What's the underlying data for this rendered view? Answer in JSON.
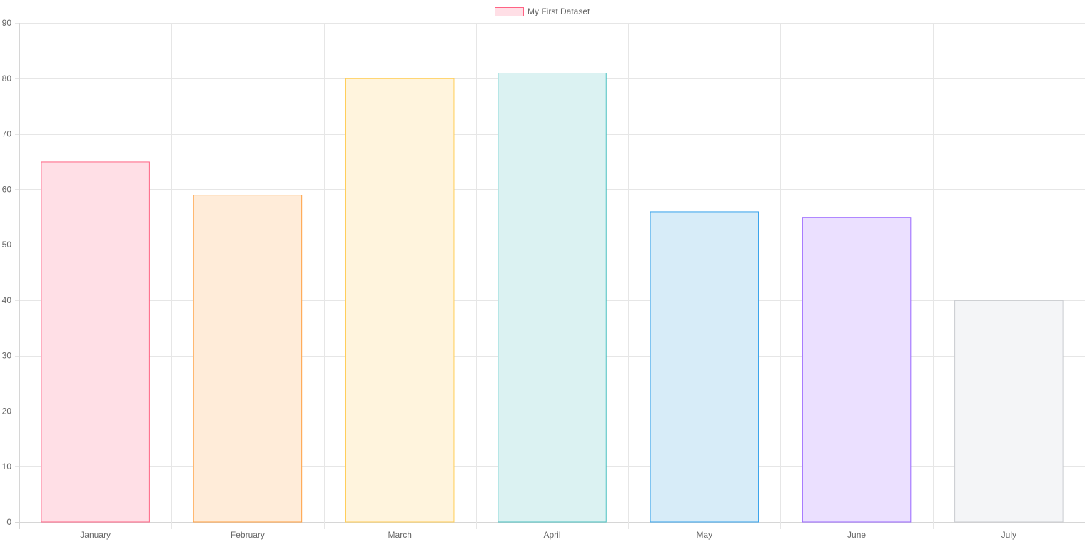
{
  "chart_data": {
    "type": "bar",
    "categories": [
      "January",
      "February",
      "March",
      "April",
      "May",
      "June",
      "July"
    ],
    "series": [
      {
        "name": "My First Dataset",
        "values": [
          65,
          59,
          80,
          81,
          56,
          55,
          40
        ],
        "fill_colors": [
          "#ffdfe6",
          "#ffecd9",
          "#fff4dd",
          "#dbf2f2",
          "#d7ecf8",
          "#ebe0ff",
          "#f4f5f7"
        ],
        "border_colors": [
          "#ff6384",
          "#ff9f40",
          "#ffcd56",
          "#4bc0c0",
          "#36a2eb",
          "#9966ff",
          "#c9cbcf"
        ]
      }
    ],
    "y_ticks": [
      "0",
      "10",
      "20",
      "30",
      "40",
      "50",
      "60",
      "70",
      "80",
      "90"
    ],
    "ylim": [
      0,
      90
    ],
    "grid": true,
    "legend_position": "top",
    "legend_swatch_fill": "#ffdfe6",
    "legend_swatch_border": "#ff6384",
    "title": "",
    "xlabel": "",
    "ylabel": ""
  }
}
